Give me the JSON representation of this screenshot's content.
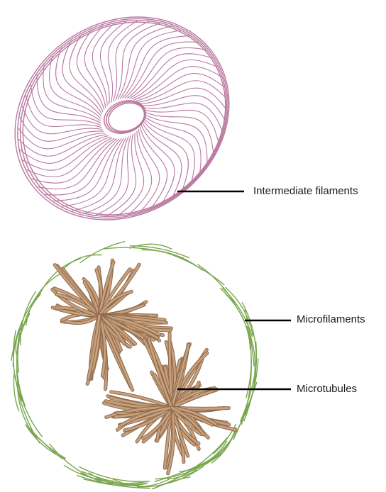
{
  "labels": {
    "intermediate_filaments": "Intermediate filaments",
    "microfilaments": "Microfilaments",
    "microtubules": "Microtubules"
  },
  "colors": {
    "intermediate_filaments": "#b9789f",
    "microfilaments": "#79a64e",
    "microtubules_fill": "#c9a07c",
    "microtubules_stroke": "#8c6a4d",
    "leader_line": "#000000"
  }
}
